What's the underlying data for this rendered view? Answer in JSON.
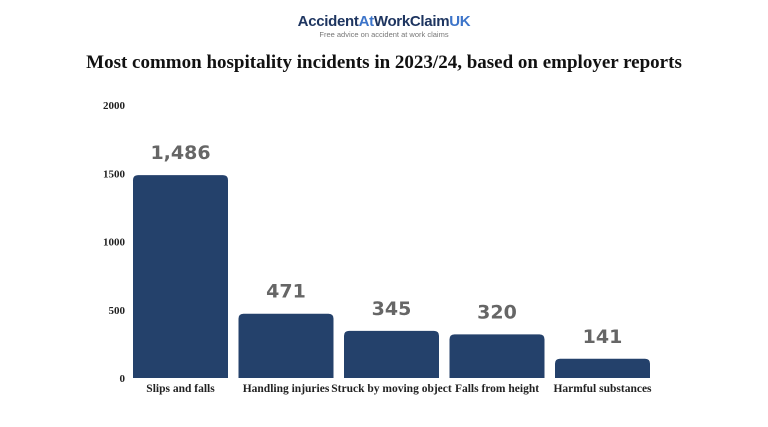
{
  "logo": {
    "part1": "Accident",
    "part2": "At",
    "part3": "WorkClaim",
    "part4": "UK",
    "tagline": "Free advice on accident at work claims"
  },
  "colors": {
    "bar": "#24416b",
    "logo_dark": "#1e3560",
    "logo_accent": "#3c74c9",
    "data_label": "#666666"
  },
  "chart_data": {
    "type": "bar",
    "title": "Most common hospitality incidents in 2023/24, based on employer reports",
    "categories": [
      "Slips and falls",
      "Handling injuries",
      "Struck by moving object",
      "Falls from height",
      "Harmful substances"
    ],
    "values": [
      1486,
      471,
      345,
      320,
      141
    ],
    "data_labels": [
      "1,486",
      "471",
      "345",
      "320",
      "141"
    ],
    "yticks": [
      "0",
      "500",
      "1000",
      "1500",
      "2000"
    ],
    "ylim": [
      0,
      2000
    ],
    "grid": false
  }
}
